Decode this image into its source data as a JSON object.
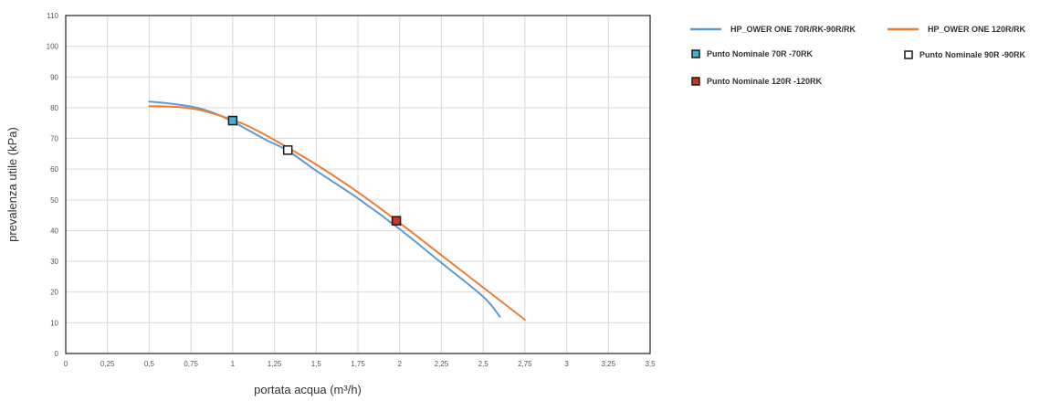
{
  "chart_data": {
    "type": "line",
    "xlabel": "portata acqua (m³/h)",
    "ylabel": "prevalenza utile (kPa)",
    "xlim": [
      0,
      3.5
    ],
    "ylim": [
      0,
      110
    ],
    "x_ticks": [
      0,
      0.25,
      0.5,
      0.75,
      1,
      1.25,
      1.5,
      1.75,
      2,
      2.25,
      2.5,
      2.75,
      3,
      3.25,
      3.5
    ],
    "x_tick_labels": [
      "0",
      "0,25",
      "0,5",
      "0,75",
      "1",
      "1,25",
      "1,5",
      "1,75",
      "2",
      "2,25",
      "2,5",
      "2,75",
      "3",
      "3,25",
      "3,5"
    ],
    "y_ticks": [
      0,
      10,
      20,
      30,
      40,
      50,
      60,
      70,
      80,
      90,
      100,
      110
    ],
    "y_tick_labels": [
      "0",
      "10",
      "20",
      "30",
      "40",
      "50",
      "60",
      "70",
      "80",
      "90",
      "100",
      "110"
    ],
    "grid": true,
    "legend_position": "right",
    "series": [
      {
        "name": "HP_OWER ONE 70R/RK-90R/RK",
        "color": "#5b9bd5",
        "x": [
          0.5,
          0.6,
          0.7,
          0.8,
          0.9,
          1.0,
          1.1,
          1.2,
          1.33,
          1.5,
          1.75,
          2.0,
          2.25,
          2.5,
          2.6
        ],
        "y": [
          82,
          81.5,
          80.8,
          79.8,
          78,
          75.5,
          72.5,
          69.5,
          66,
          59.5,
          50.5,
          40.5,
          29.5,
          18.5,
          12
        ]
      },
      {
        "name": "HP_OWER ONE 120R/RK",
        "color": "#ed7d31",
        "x": [
          0.5,
          0.6,
          0.7,
          0.8,
          0.9,
          1.0,
          1.1,
          1.25,
          1.5,
          1.75,
          2.0,
          2.25,
          2.5,
          2.75
        ],
        "y": [
          80.5,
          80.4,
          80.1,
          79.3,
          77.8,
          76,
          73.8,
          69.5,
          61.5,
          52.5,
          42.5,
          32,
          21.5,
          11
        ]
      }
    ],
    "markers": [
      {
        "name": "Punto Nominale 70R -70RK",
        "x": 1.0,
        "y": 75.8,
        "fill": "#3fb0d8",
        "stroke": "#1a1a1a"
      },
      {
        "name": "Punto Nominale 90R -90RK",
        "x": 1.33,
        "y": 66.2,
        "fill": "#ffffff",
        "stroke": "#1a1a1a"
      },
      {
        "name": "Punto Nominale 120R -120RK",
        "x": 1.98,
        "y": 43.2,
        "fill": "#c0392b",
        "stroke": "#1a1a1a"
      }
    ]
  }
}
